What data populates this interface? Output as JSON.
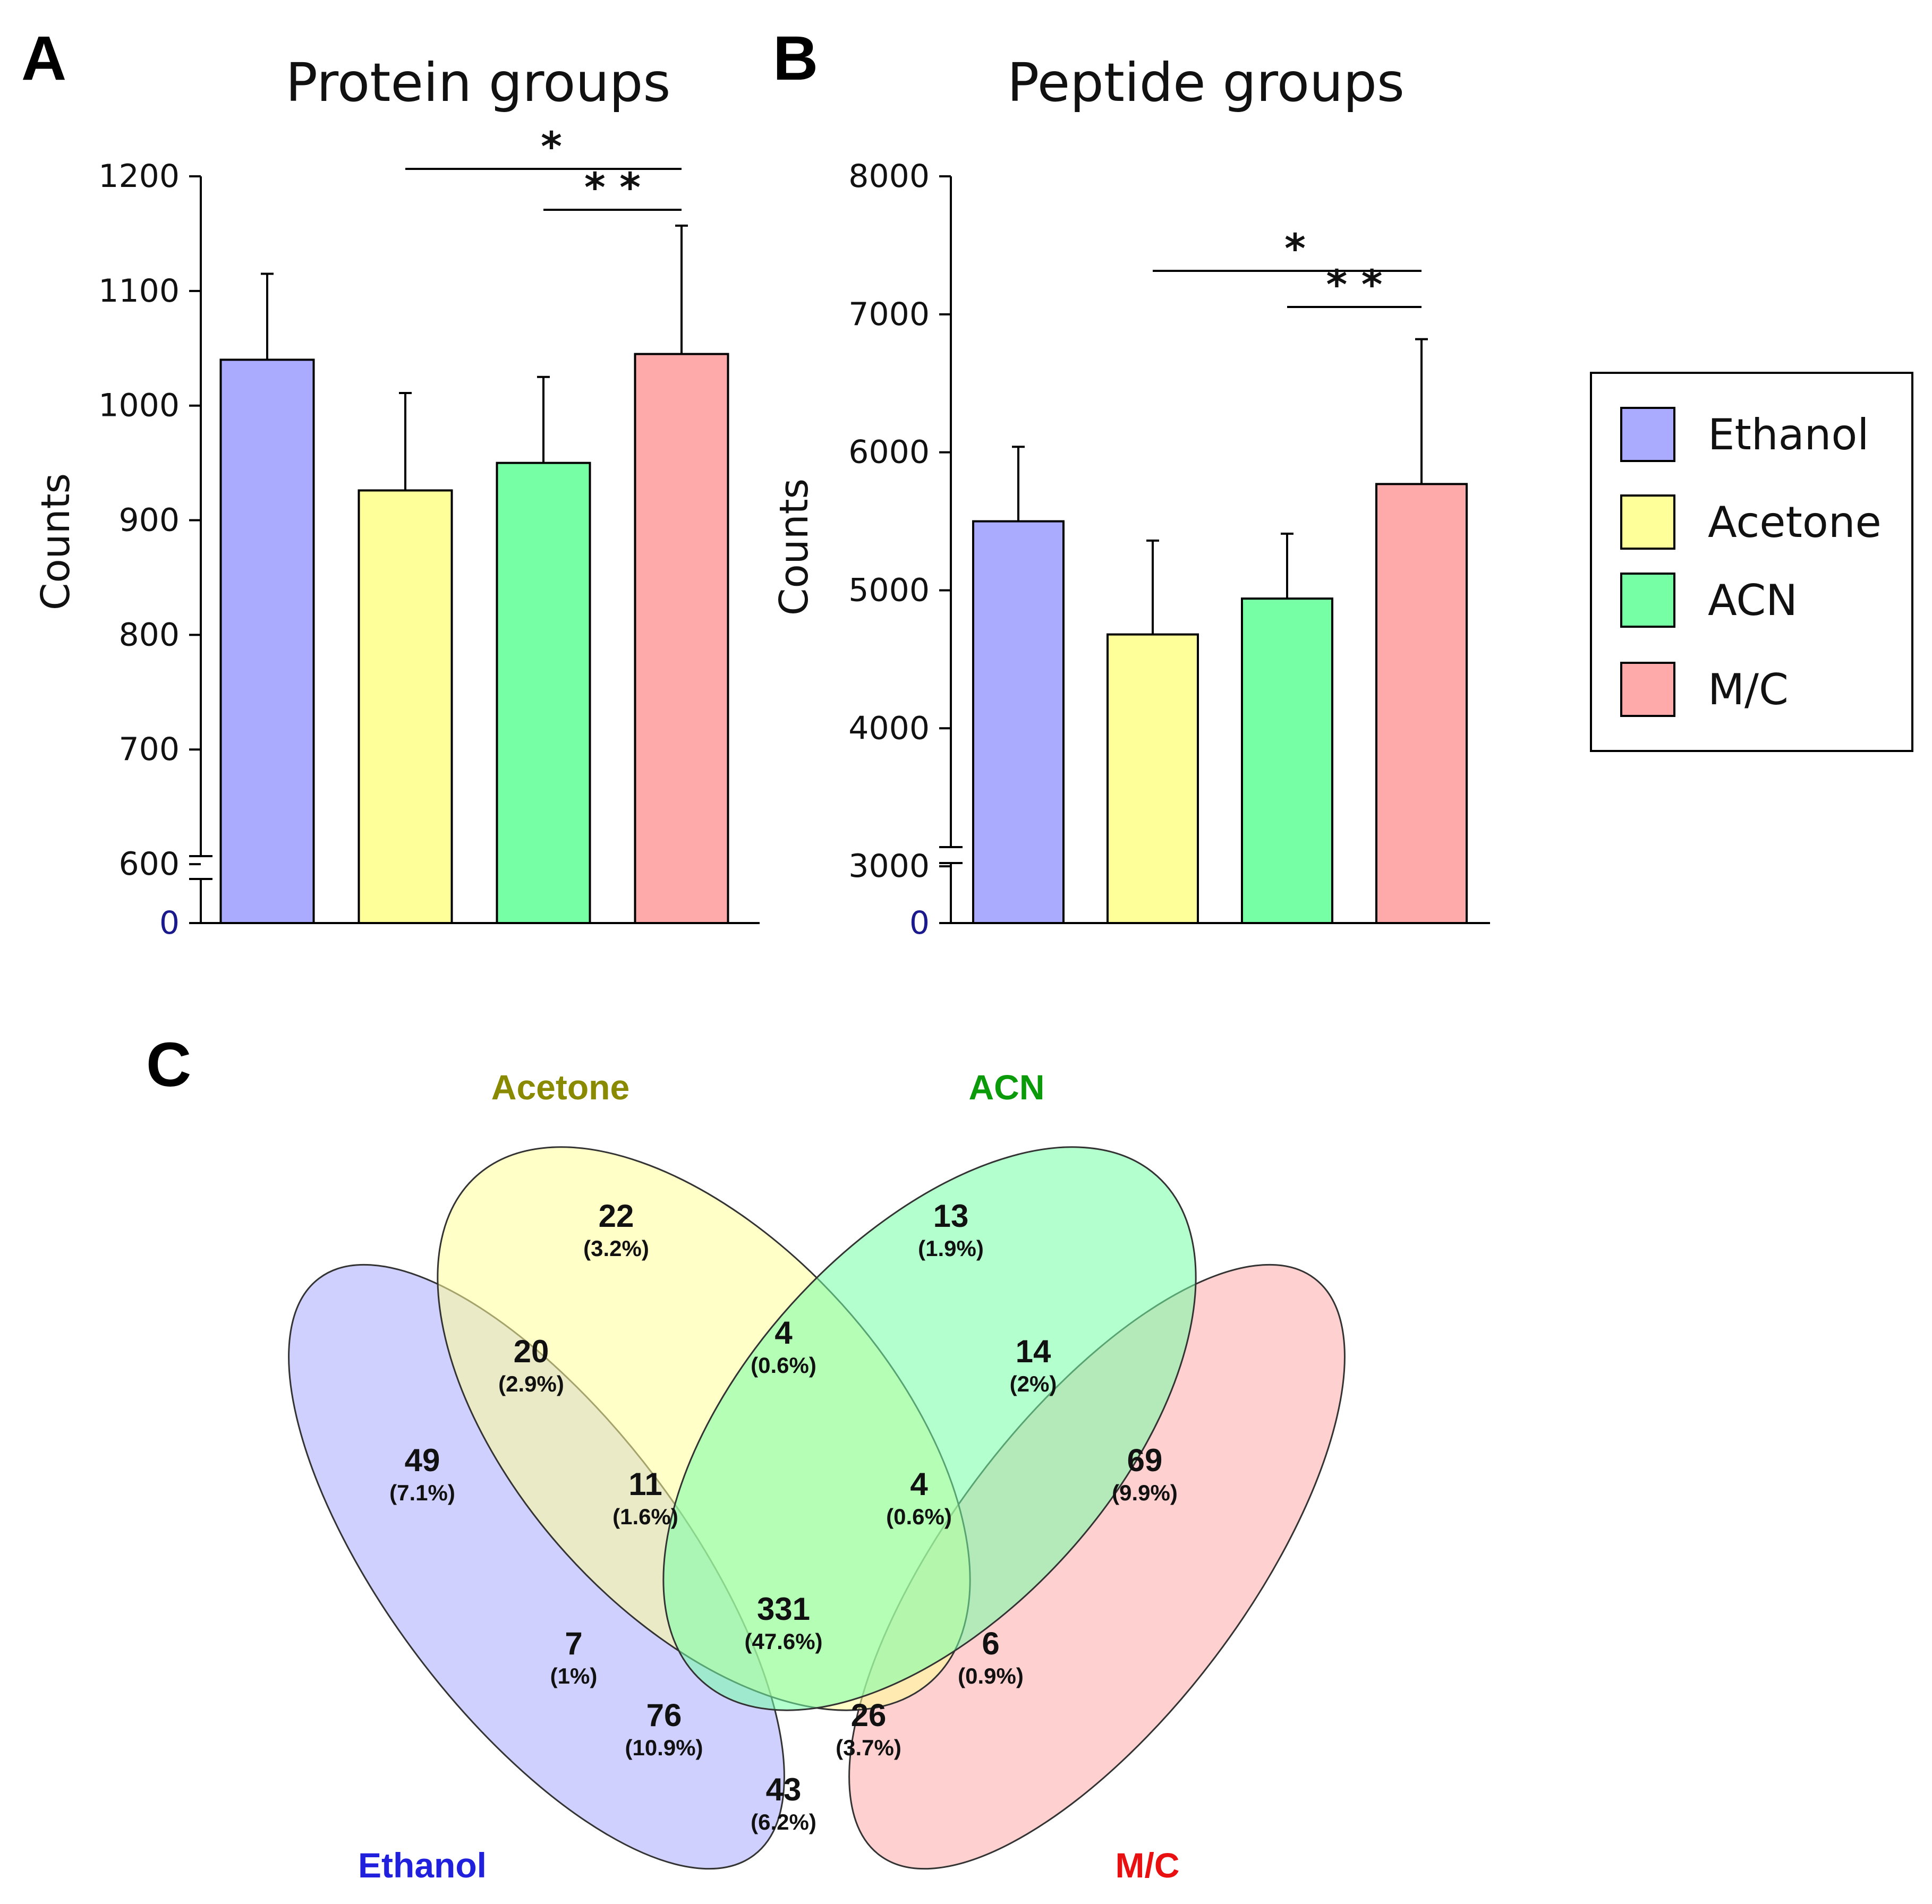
{
  "panels": {
    "a": "A",
    "b": "B",
    "c": "C"
  },
  "colors": {
    "Ethanol": "#aaaaff",
    "Acetone": "#ffff99",
    "ACN": "#77ffa6",
    "M/C": "#ffaaaa",
    "label_Ethanol": "#2020dd",
    "label_Acetone": "#8a8a00",
    "label_ACN": "#0a9a0a",
    "label_M/C": "#e81010"
  },
  "legend": {
    "entries": [
      "Ethanol",
      "Acetone",
      "ACN",
      "M/C"
    ]
  },
  "chart_data": [
    {
      "type": "bar",
      "title": "Protein groups",
      "ylabel": "Counts",
      "xlabel": "",
      "categories": [
        "Ethanol",
        "Acetone",
        "ACN",
        "M/C"
      ],
      "values": [
        1040,
        926,
        950,
        1045
      ],
      "errors": [
        75,
        85,
        75,
        112
      ],
      "ylim": [
        550,
        1200
      ],
      "yticks": [
        "600",
        "700",
        "800",
        "900",
        "1000",
        "1100",
        "1200"
      ],
      "ytick_values": [
        600,
        700,
        800,
        900,
        1000,
        1100,
        1200
      ],
      "axis_break": true,
      "zero_label": "0",
      "significance": [
        {
          "from": "Acetone",
          "to": "M/C",
          "label": "*"
        },
        {
          "from": "ACN",
          "to": "M/C",
          "label": "* *"
        }
      ]
    },
    {
      "type": "bar",
      "title": "Peptide groups",
      "ylabel": "Counts",
      "xlabel": "",
      "categories": [
        "Ethanol",
        "Acetone",
        "ACN",
        "M/C"
      ],
      "values": [
        5500,
        4680,
        4940,
        5770
      ],
      "errors": [
        540,
        680,
        470,
        1050
      ],
      "ylim": [
        2600,
        8000
      ],
      "yticks": [
        "3000",
        "4000",
        "5000",
        "6000",
        "7000",
        "8000"
      ],
      "ytick_values": [
        3000,
        4000,
        5000,
        6000,
        7000,
        8000
      ],
      "axis_break": true,
      "zero_label": "0",
      "significance": [
        {
          "from": "Acetone",
          "to": "M/C",
          "label": "*"
        },
        {
          "from": "ACN",
          "to": "M/C",
          "label": "* *"
        }
      ]
    },
    {
      "type": "venn",
      "sets": [
        "Acetone",
        "ACN",
        "Ethanol",
        "M/C"
      ],
      "regions": [
        {
          "id": "acetone-only",
          "sets": [
            "Acetone"
          ],
          "count": "22",
          "percent": "(3.2%)"
        },
        {
          "id": "acn-only",
          "sets": [
            "ACN"
          ],
          "count": "13",
          "percent": "(1.9%)"
        },
        {
          "id": "ethanol-acetone",
          "sets": [
            "Ethanol",
            "Acetone"
          ],
          "count": "20",
          "percent": "(2.9%)"
        },
        {
          "id": "acetone-acn",
          "sets": [
            "Acetone",
            "ACN"
          ],
          "count": "4",
          "percent": "(0.6%)"
        },
        {
          "id": "acn-mc",
          "sets": [
            "ACN",
            "M/C"
          ],
          "count": "14",
          "percent": "(2%)"
        },
        {
          "id": "ethanol-only",
          "sets": [
            "Ethanol"
          ],
          "count": "49",
          "percent": "(7.1%)"
        },
        {
          "id": "ethanol-acetone-acn",
          "sets": [
            "Ethanol",
            "Acetone",
            "ACN"
          ],
          "count": "11",
          "percent": "(1.6%)"
        },
        {
          "id": "acetone-acn-mc",
          "sets": [
            "Acetone",
            "ACN",
            "M/C"
          ],
          "count": "4",
          "percent": "(0.6%)"
        },
        {
          "id": "mc-only",
          "sets": [
            "M/C"
          ],
          "count": "69",
          "percent": "(9.9%)"
        },
        {
          "id": "all-four",
          "sets": [
            "Ethanol",
            "Acetone",
            "ACN",
            "M/C"
          ],
          "count": "331",
          "percent": "(47.6%)"
        },
        {
          "id": "ethanol-acn",
          "sets": [
            "Ethanol",
            "ACN"
          ],
          "count": "7",
          "percent": "(1%)"
        },
        {
          "id": "acetone-mc",
          "sets": [
            "Acetone",
            "M/C"
          ],
          "count": "6",
          "percent": "(0.9%)"
        },
        {
          "id": "ethanol-acn-mc",
          "sets": [
            "Ethanol",
            "ACN",
            "M/C"
          ],
          "count": "76",
          "percent": "(10.9%)"
        },
        {
          "id": "ethanol-acetone-mc",
          "sets": [
            "Ethanol",
            "Acetone",
            "M/C"
          ],
          "count": "26",
          "percent": "(3.7%)"
        },
        {
          "id": "ethanol-mc",
          "sets": [
            "Ethanol",
            "M/C"
          ],
          "count": "43",
          "percent": "(6.2%)"
        }
      ]
    }
  ]
}
